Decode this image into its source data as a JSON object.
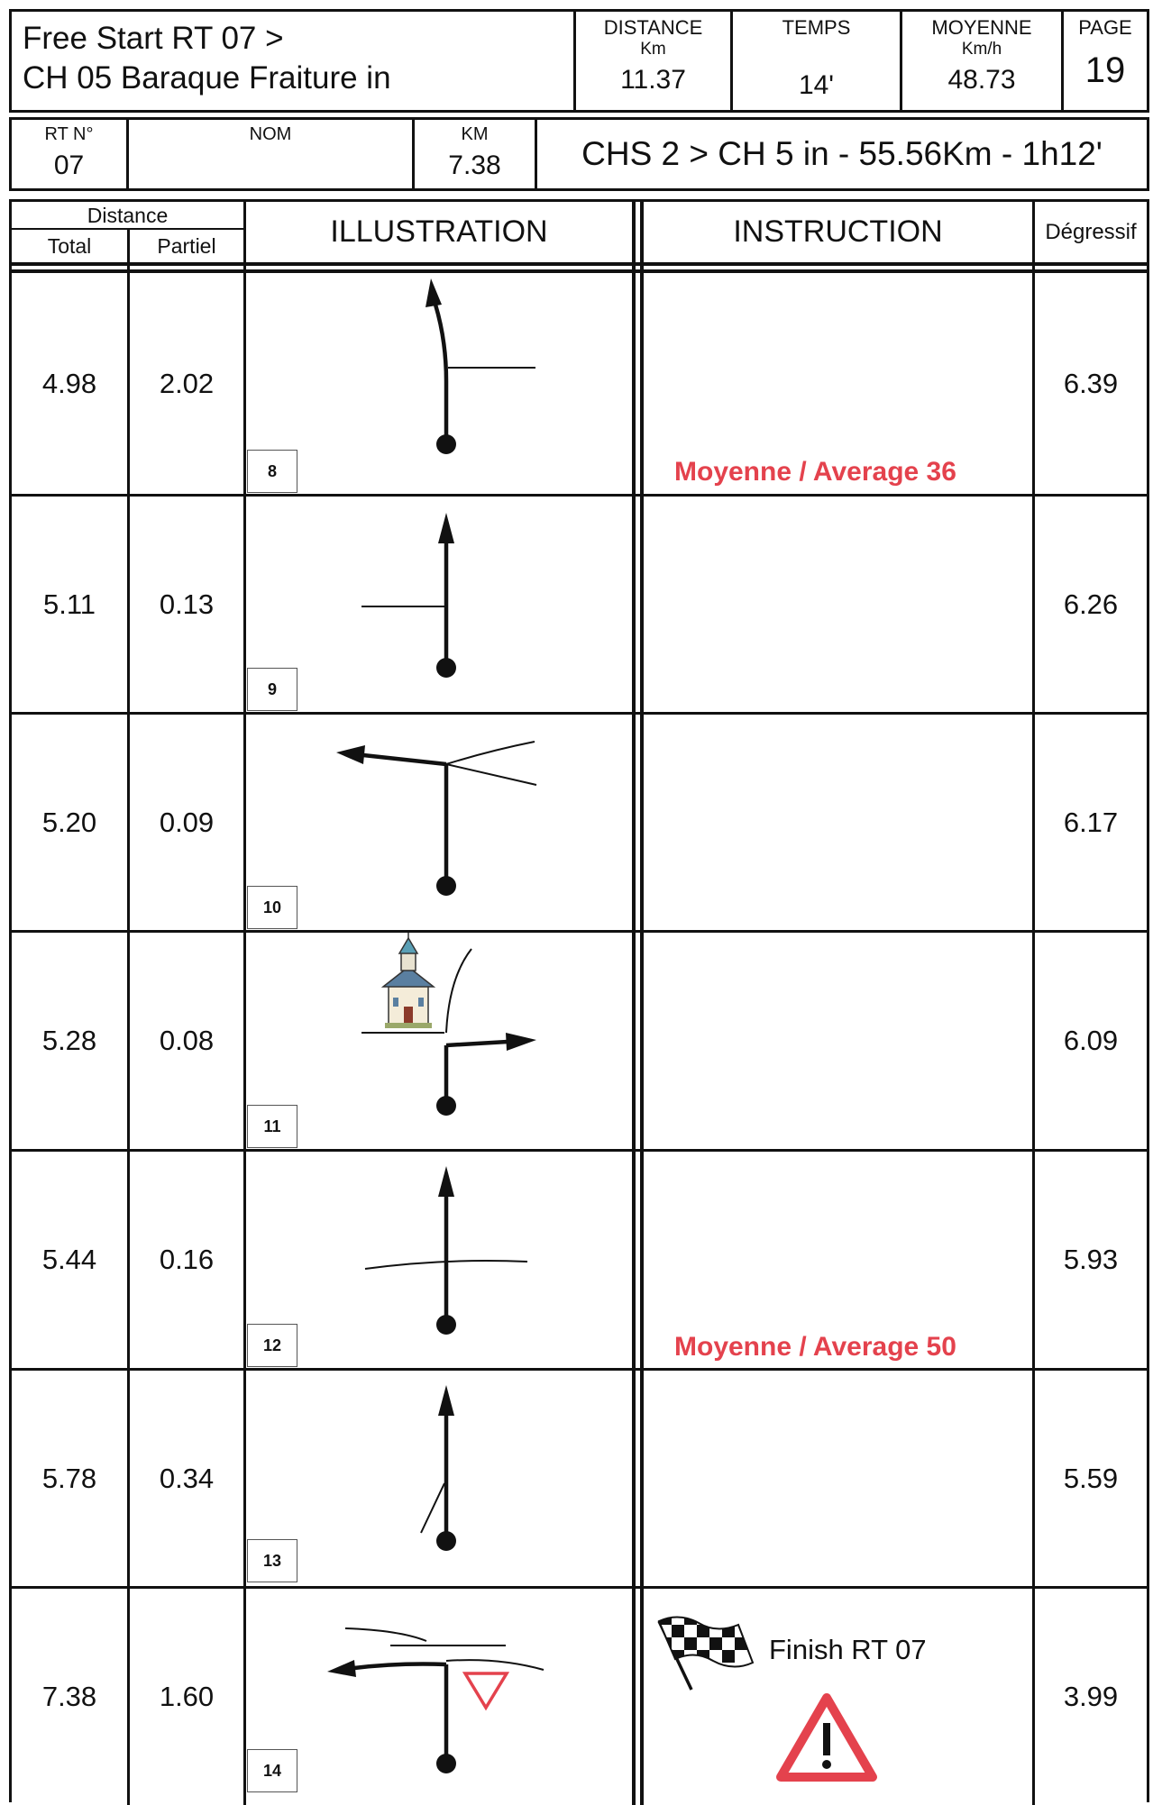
{
  "header": {
    "title_line1": "Free Start RT 07  >",
    "title_line2": "CH 05 Baraque Fraiture in",
    "distance": {
      "label": "DISTANCE",
      "unit": "Km",
      "value": "11.37"
    },
    "temps": {
      "label": "TEMPS",
      "value": "14'"
    },
    "moyenne": {
      "label": "MOYENNE",
      "unit": "Km/h",
      "value": "48.73"
    },
    "page": {
      "label": "PAGE",
      "value": "19"
    }
  },
  "route": {
    "rt_label": "RT N°",
    "rt_value": "07",
    "nom_label": "NOM",
    "km_label": "KM",
    "km_value": "7.38",
    "summary": "CHS 2 > CH 5 in - 55.56Km - 1h12'"
  },
  "table": {
    "distance_label": "Distance",
    "total_label": "Total",
    "partiel_label": "Partiel",
    "illustration_label": "ILLUSTRATION",
    "instruction_label": "INSTRUCTION",
    "degressif_label": "Dégressif",
    "rows": [
      {
        "total": "4.98",
        "partiel": "2.02",
        "num": "8",
        "degressif": "6.39",
        "instruction": "Moyenne / Average 36"
      },
      {
        "total": "5.11",
        "partiel": "0.13",
        "num": "9",
        "degressif": "6.26",
        "instruction": ""
      },
      {
        "total": "5.20",
        "partiel": "0.09",
        "num": "10",
        "degressif": "6.17",
        "instruction": ""
      },
      {
        "total": "5.28",
        "partiel": "0.08",
        "num": "11",
        "degressif": "6.09",
        "instruction": ""
      },
      {
        "total": "5.44",
        "partiel": "0.16",
        "num": "12",
        "degressif": "5.93",
        "instruction": "Moyenne / Average 50"
      },
      {
        "total": "5.78",
        "partiel": "0.34",
        "num": "13",
        "degressif": "5.59",
        "instruction": ""
      },
      {
        "total": "7.38",
        "partiel": "1.60",
        "num": "14",
        "degressif": "3.99",
        "instruction": "Finish RT 07"
      }
    ]
  },
  "icons": {
    "row1": "straight-then-right-turn-diagram",
    "row2": "straight-with-left-branch-diagram",
    "row3": "left-turn-at-junction-diagram",
    "row4": "church-and-right-turn-diagram",
    "row5": "crossroads-straight-diagram",
    "row6": "straight-with-left-diagonal-diagram",
    "row7": "left-turn-yield-diagram",
    "finish_flag": "checkered-flag-icon",
    "warning": "warning-triangle-icon"
  },
  "colors": {
    "accent_red": "#e4424d",
    "ink": "#111111"
  }
}
